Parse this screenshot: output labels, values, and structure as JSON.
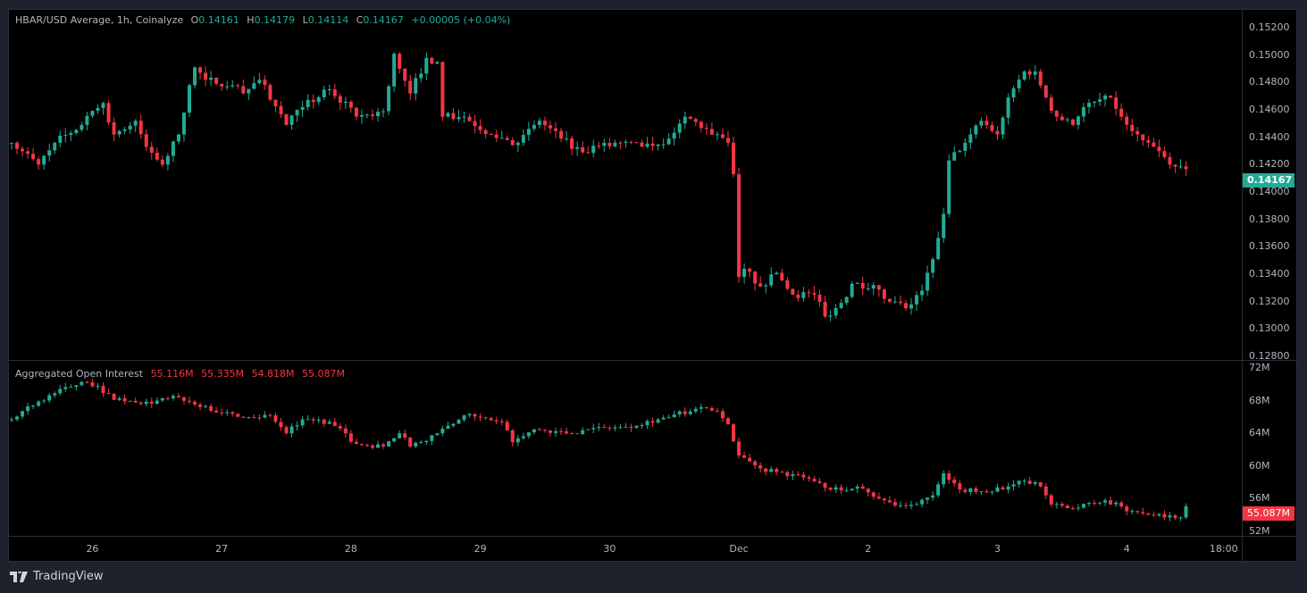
{
  "chart_data": [
    {
      "type": "candlestick",
      "title": "HBAR/USD Average, 1h, Coinalyze",
      "ohlc_label": {
        "o_prefix": "O",
        "o": "0.14161",
        "h_prefix": "H",
        "h": "0.14179",
        "l_prefix": "L",
        "l": "0.14114",
        "c_prefix": "C",
        "c": "0.14167",
        "change": "+0.00005 (+0.04%)"
      },
      "last_price_tag": "0.14167",
      "last_price": 0.14167,
      "ylim": [
        0.128,
        0.152
      ],
      "yticks": [
        "0.15200",
        "0.15000",
        "0.14800",
        "0.14600",
        "0.14400",
        "0.14200",
        "0.14000",
        "0.13800",
        "0.13600",
        "0.13400",
        "0.13200",
        "0.13000",
        "0.12800"
      ],
      "close_keypoints_hour_price": [
        [
          0,
          0.1436
        ],
        [
          5,
          0.142
        ],
        [
          8,
          0.1436
        ],
        [
          13,
          0.1449
        ],
        [
          17,
          0.1465
        ],
        [
          19,
          0.1442
        ],
        [
          23,
          0.1452
        ],
        [
          25,
          0.1433
        ],
        [
          28,
          0.142
        ],
        [
          31,
          0.1442
        ],
        [
          33,
          0.1478
        ],
        [
          34,
          0.1491
        ],
        [
          36,
          0.1482
        ],
        [
          41,
          0.1478
        ],
        [
          43,
          0.1472
        ],
        [
          46,
          0.1482
        ],
        [
          51,
          0.1449
        ],
        [
          54,
          0.1462
        ],
        [
          59,
          0.1475
        ],
        [
          64,
          0.1455
        ],
        [
          69,
          0.1459
        ],
        [
          71,
          0.1501
        ],
        [
          74,
          0.1472
        ],
        [
          77,
          0.1498
        ],
        [
          79,
          0.1495
        ],
        [
          80,
          0.1455
        ],
        [
          84,
          0.1455
        ],
        [
          89,
          0.1442
        ],
        [
          94,
          0.1436
        ],
        [
          98,
          0.1452
        ],
        [
          102,
          0.1439
        ],
        [
          106,
          0.1429
        ],
        [
          112,
          0.1436
        ],
        [
          117,
          0.1433
        ],
        [
          122,
          0.1439
        ],
        [
          125,
          0.1455
        ],
        [
          129,
          0.1446
        ],
        [
          133,
          0.1436
        ],
        [
          134,
          0.1413
        ],
        [
          135,
          0.1338
        ],
        [
          136,
          0.1344
        ],
        [
          139,
          0.1331
        ],
        [
          142,
          0.1341
        ],
        [
          145,
          0.1325
        ],
        [
          149,
          0.1325
        ],
        [
          151,
          0.1309
        ],
        [
          154,
          0.1319
        ],
        [
          156,
          0.1333
        ],
        [
          160,
          0.1332
        ],
        [
          162,
          0.1322
        ],
        [
          166,
          0.1315
        ],
        [
          169,
          0.1328
        ],
        [
          171,
          0.1351
        ],
        [
          173,
          0.1384
        ],
        [
          174,
          0.1423
        ],
        [
          177,
          0.1436
        ],
        [
          180,
          0.1452
        ],
        [
          183,
          0.1442
        ],
        [
          185,
          0.1469
        ],
        [
          188,
          0.1488
        ],
        [
          190,
          0.1488
        ],
        [
          192,
          0.1469
        ],
        [
          194,
          0.1455
        ],
        [
          197,
          0.1449
        ],
        [
          199,
          0.1462
        ],
        [
          204,
          0.1469
        ],
        [
          206,
          0.1455
        ],
        [
          209,
          0.1442
        ],
        [
          212,
          0.1433
        ],
        [
          215,
          0.142
        ],
        [
          218,
          0.14167
        ]
      ]
    },
    {
      "type": "candlestick",
      "title": "Aggregated Open Interest",
      "values_label": [
        "55.116M",
        "55.335M",
        "54.818M",
        "55.087M"
      ],
      "last_value_tag": "55.087M",
      "units": "M",
      "ylim": [
        52,
        72
      ],
      "yticks": [
        "72M",
        "68M",
        "64M",
        "60M",
        "56M",
        "52M"
      ],
      "close_keypoints_hour_value": [
        [
          0,
          65.7
        ],
        [
          3,
          67.3
        ],
        [
          8,
          68.9
        ],
        [
          13,
          70.3
        ],
        [
          16,
          69.8
        ],
        [
          19,
          68.1
        ],
        [
          24,
          67.6
        ],
        [
          31,
          68.4
        ],
        [
          36,
          67.3
        ],
        [
          39,
          66.5
        ],
        [
          43,
          65.9
        ],
        [
          48,
          66.2
        ],
        [
          51,
          64.0
        ],
        [
          54,
          65.7
        ],
        [
          59,
          65.4
        ],
        [
          64,
          62.7
        ],
        [
          69,
          62.4
        ],
        [
          72,
          64.0
        ],
        [
          74,
          62.4
        ],
        [
          79,
          64.0
        ],
        [
          84,
          66.2
        ],
        [
          91,
          65.4
        ],
        [
          93,
          62.9
        ],
        [
          97,
          64.5
        ],
        [
          104,
          64.0
        ],
        [
          107,
          64.5
        ],
        [
          114,
          64.8
        ],
        [
          121,
          65.9
        ],
        [
          127,
          67.0
        ],
        [
          131,
          66.7
        ],
        [
          133,
          65.1
        ],
        [
          135,
          61.3
        ],
        [
          139,
          59.7
        ],
        [
          147,
          58.6
        ],
        [
          152,
          57.1
        ],
        [
          157,
          57.5
        ],
        [
          162,
          55.8
        ],
        [
          166,
          55.1
        ],
        [
          171,
          56.4
        ],
        [
          173,
          59.1
        ],
        [
          176,
          57.1
        ],
        [
          180,
          56.9
        ],
        [
          185,
          57.5
        ],
        [
          188,
          58.2
        ],
        [
          191,
          57.5
        ],
        [
          193,
          55.3
        ],
        [
          197,
          54.8
        ],
        [
          203,
          55.8
        ],
        [
          208,
          54.5
        ],
        [
          214,
          53.7
        ],
        [
          217,
          53.7
        ],
        [
          218,
          55.087
        ]
      ]
    }
  ],
  "xticks": [
    {
      "label": "26",
      "hour": 15
    },
    {
      "label": "27",
      "hour": 39
    },
    {
      "label": "28",
      "hour": 63
    },
    {
      "label": "29",
      "hour": 87
    },
    {
      "label": "30",
      "hour": 111
    },
    {
      "label": "Dec",
      "hour": 135
    },
    {
      "label": "2",
      "hour": 159
    },
    {
      "label": "3",
      "hour": 183
    },
    {
      "label": "4",
      "hour": 207
    },
    {
      "label": "18:00",
      "hour": 225
    }
  ],
  "colors": {
    "up": "#22ab94",
    "down": "#f23645",
    "price_tag": "#22ab94",
    "oi_tag": "#f23645"
  },
  "footer": {
    "brand": "TradingView"
  }
}
